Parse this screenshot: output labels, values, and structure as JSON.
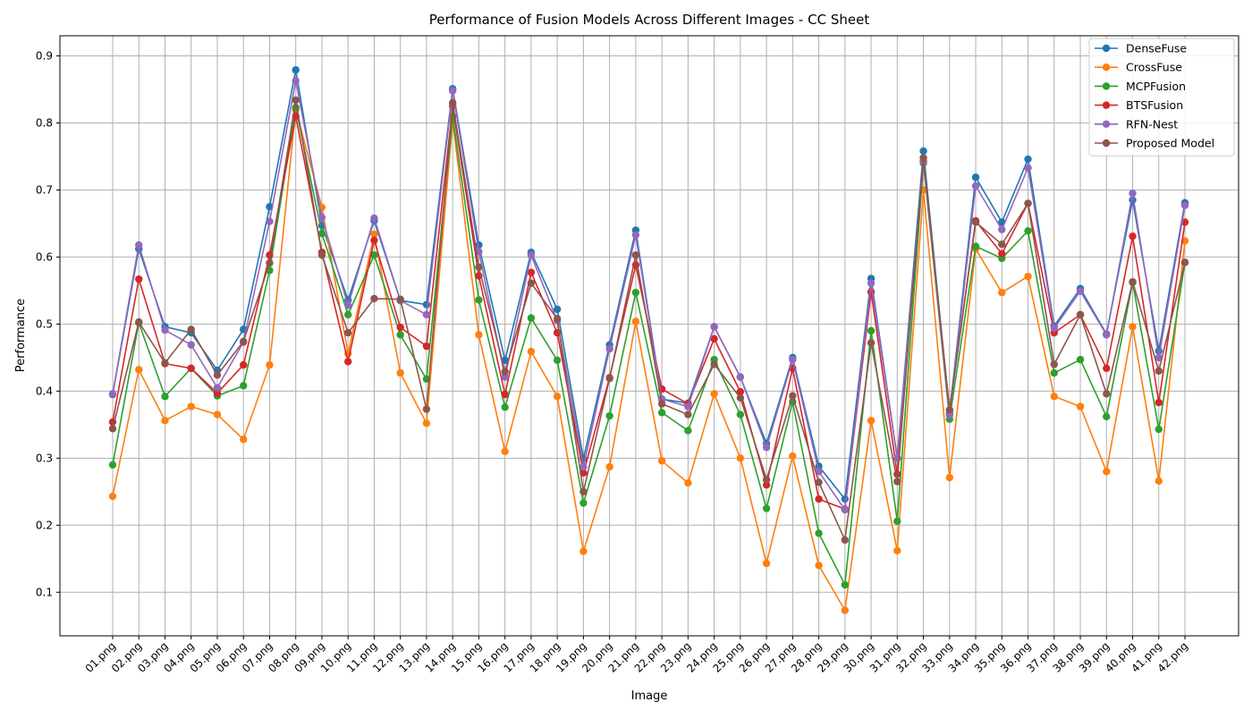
{
  "chart_data": {
    "type": "line",
    "title": "Performance of Fusion Models Across Different Images - CC Sheet",
    "xlabel": "Image",
    "ylabel": "Performance",
    "ylim": [
      0.035,
      0.93
    ],
    "yticks": [
      0.1,
      0.2,
      0.3,
      0.4,
      0.5,
      0.6,
      0.7,
      0.8,
      0.9
    ],
    "ytick_labels": [
      "0.1",
      "0.2",
      "0.3",
      "0.4",
      "0.5",
      "0.6",
      "0.7",
      "0.8",
      "0.9"
    ],
    "grid": true,
    "legend_position": "top-right",
    "categories": [
      "01.png",
      "02.png",
      "03.png",
      "04.png",
      "05.png",
      "06.png",
      "07.png",
      "08.png",
      "09.png",
      "10.png",
      "11.png",
      "12.png",
      "13.png",
      "14.png",
      "15.png",
      "16.png",
      "17.png",
      "18.png",
      "19.png",
      "20.png",
      "21.png",
      "22.png",
      "23.png",
      "24.png",
      "25.png",
      "26.png",
      "27.png",
      "28.png",
      "29.png",
      "30.png",
      "31.png",
      "32.png",
      "33.png",
      "34.png",
      "35.png",
      "36.png",
      "37.png",
      "38.png",
      "39.png",
      "40.png",
      "41.png",
      "42.png"
    ],
    "series": [
      {
        "name": "DenseFuse",
        "color": "#1f77b4",
        "values": [
          0.395,
          0.612,
          0.496,
          0.487,
          0.431,
          0.492,
          0.675,
          0.879,
          0.647,
          0.536,
          0.654,
          0.535,
          0.529,
          0.851,
          0.618,
          0.446,
          0.607,
          0.522,
          0.299,
          0.469,
          0.64,
          0.388,
          0.382,
          0.496,
          0.421,
          0.322,
          0.45,
          0.288,
          0.239,
          0.568,
          0.3,
          0.758,
          0.367,
          0.719,
          0.652,
          0.746,
          0.497,
          0.553,
          0.485,
          0.685,
          0.46,
          0.681
        ]
      },
      {
        "name": "CrossFuse",
        "color": "#ff7f0e",
        "values": [
          0.243,
          0.432,
          0.356,
          0.377,
          0.365,
          0.328,
          0.439,
          0.82,
          0.674,
          0.456,
          0.634,
          0.427,
          0.352,
          0.803,
          0.484,
          0.31,
          0.459,
          0.392,
          0.161,
          0.287,
          0.504,
          0.296,
          0.263,
          0.396,
          0.3,
          0.143,
          0.303,
          0.14,
          0.073,
          0.356,
          0.162,
          0.7,
          0.271,
          0.612,
          0.547,
          0.571,
          0.392,
          0.377,
          0.28,
          0.496,
          0.266,
          0.624
        ]
      },
      {
        "name": "MCPFusion",
        "color": "#2ca02c",
        "values": [
          0.29,
          0.502,
          0.392,
          0.434,
          0.393,
          0.408,
          0.58,
          0.823,
          0.635,
          0.514,
          0.603,
          0.484,
          0.418,
          0.81,
          0.536,
          0.376,
          0.509,
          0.446,
          0.233,
          0.363,
          0.547,
          0.368,
          0.341,
          0.447,
          0.365,
          0.225,
          0.384,
          0.188,
          0.111,
          0.49,
          0.206,
          0.74,
          0.358,
          0.616,
          0.598,
          0.639,
          0.427,
          0.447,
          0.362,
          0.562,
          0.343,
          0.592
        ]
      },
      {
        "name": "BTSFusion",
        "color": "#d62728",
        "values": [
          0.354,
          0.567,
          0.441,
          0.434,
          0.397,
          0.439,
          0.603,
          0.81,
          0.607,
          0.444,
          0.625,
          0.495,
          0.467,
          0.825,
          0.572,
          0.395,
          0.577,
          0.487,
          0.278,
          0.42,
          0.588,
          0.403,
          0.381,
          0.478,
          0.399,
          0.26,
          0.434,
          0.239,
          0.224,
          0.548,
          0.276,
          0.743,
          0.372,
          0.654,
          0.605,
          0.68,
          0.487,
          0.514,
          0.434,
          0.631,
          0.383,
          0.652
        ]
      },
      {
        "name": "RFN-Nest",
        "color": "#9467bd",
        "values": [
          0.396,
          0.618,
          0.491,
          0.469,
          0.405,
          0.473,
          0.653,
          0.863,
          0.659,
          0.528,
          0.658,
          0.535,
          0.514,
          0.848,
          0.608,
          0.421,
          0.603,
          0.505,
          0.287,
          0.463,
          0.633,
          0.388,
          0.377,
          0.496,
          0.421,
          0.316,
          0.447,
          0.28,
          0.223,
          0.561,
          0.3,
          0.743,
          0.364,
          0.706,
          0.641,
          0.733,
          0.494,
          0.549,
          0.484,
          0.695,
          0.45,
          0.677
        ]
      },
      {
        "name": "Proposed Model",
        "color": "#8c564b",
        "values": [
          0.344,
          0.503,
          0.442,
          0.492,
          0.424,
          0.474,
          0.591,
          0.834,
          0.603,
          0.487,
          0.538,
          0.537,
          0.373,
          0.83,
          0.585,
          0.429,
          0.561,
          0.508,
          0.25,
          0.419,
          0.603,
          0.381,
          0.365,
          0.44,
          0.39,
          0.268,
          0.393,
          0.264,
          0.178,
          0.472,
          0.265,
          0.748,
          0.372,
          0.652,
          0.619,
          0.68,
          0.44,
          0.514,
          0.396,
          0.563,
          0.43,
          0.592
        ]
      }
    ]
  }
}
